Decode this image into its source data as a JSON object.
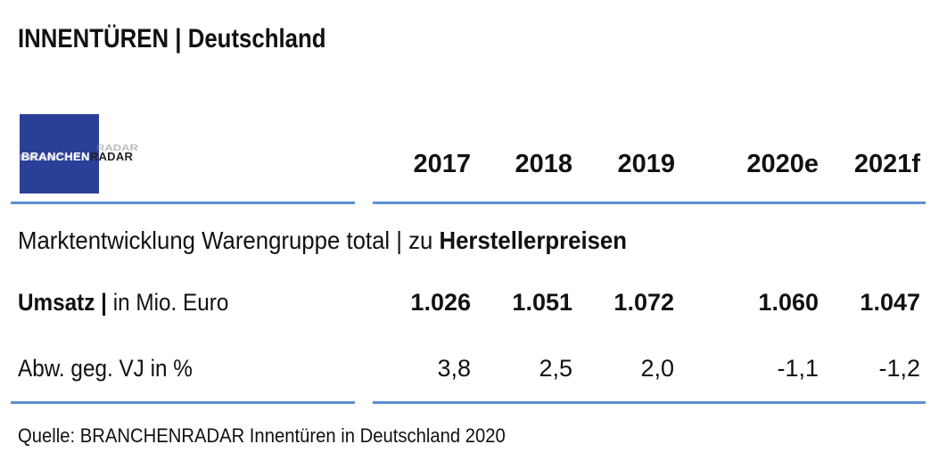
{
  "header": {
    "title_bold": "INNENTÜREN",
    "title_separator": " | ",
    "title_rest": "Deutschland"
  },
  "logo": {
    "part1": "BRANCHEN",
    "part2": "RADAR"
  },
  "section": {
    "prefix": "Marktentwicklung Warengruppe total | zu ",
    "bold": "Herstellerpreisen"
  },
  "chart_data": {
    "type": "table",
    "columns": [
      "2017",
      "2018",
      "2019",
      "2020e",
      "2021f"
    ],
    "rows": [
      {
        "label_bold": "Umsatz |",
        "label_rest": " in Mio. Euro",
        "values": [
          "1.026",
          "1.051",
          "1.072",
          "1.060",
          "1.047"
        ]
      },
      {
        "label_bold": "",
        "label_rest": "Abw. geg. VJ in %",
        "values": [
          "3,8",
          "2,5",
          "2,0",
          "-1,1",
          "-1,2"
        ]
      }
    ]
  },
  "footer": {
    "source": "Quelle: BRANCHENRADAR Innentüren in Deutschland 2020"
  },
  "colors": {
    "rule": "#5b8fd1",
    "logo_bg": "#2a3f97"
  }
}
